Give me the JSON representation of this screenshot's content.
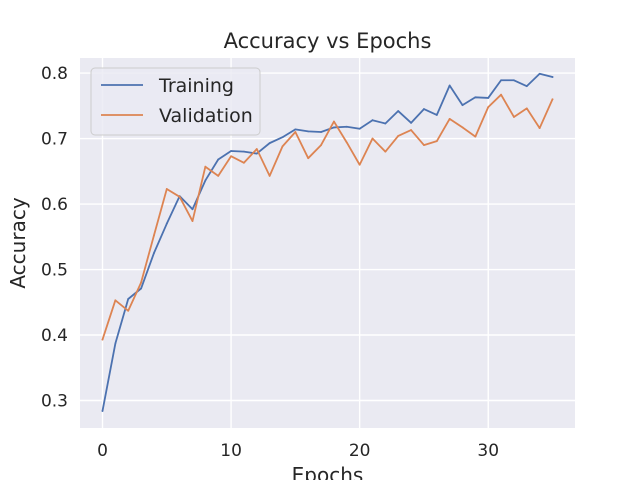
{
  "chart_data": {
    "type": "line",
    "title": "Accuracy vs Epochs",
    "xlabel": "Epochs",
    "ylabel": "Accuracy",
    "x": [
      0,
      1,
      2,
      3,
      4,
      5,
      6,
      7,
      8,
      9,
      10,
      11,
      12,
      13,
      14,
      15,
      16,
      17,
      18,
      19,
      20,
      21,
      22,
      23,
      24,
      25,
      26,
      27,
      28,
      29,
      30,
      31,
      32,
      33,
      34,
      35
    ],
    "x_ticks": [
      0,
      10,
      20,
      30
    ],
    "x_tick_labels": [
      "0",
      "10",
      "20",
      "30"
    ],
    "y_ticks": [
      0.3,
      0.4,
      0.5,
      0.6,
      0.7,
      0.8
    ],
    "y_tick_labels": [
      "0.3",
      "0.4",
      "0.5",
      "0.6",
      "0.7",
      "0.8"
    ],
    "xlim": [
      -1.75,
      36.75
    ],
    "ylim": [
      0.258,
      0.823
    ],
    "grid": true,
    "legend_position": "top-left",
    "colors": {
      "plot_background": "#eaeaf2",
      "grid": "#ffffff",
      "text": "#262626",
      "legend_border": "#cccccc"
    },
    "series": [
      {
        "name": "Training",
        "color": "#4c72b0",
        "values": [
          0.284,
          0.387,
          0.455,
          0.471,
          0.525,
          0.57,
          0.612,
          0.592,
          0.636,
          0.668,
          0.681,
          0.68,
          0.677,
          0.693,
          0.702,
          0.714,
          0.711,
          0.71,
          0.717,
          0.718,
          0.715,
          0.728,
          0.723,
          0.742,
          0.724,
          0.745,
          0.736,
          0.781,
          0.751,
          0.763,
          0.762,
          0.789,
          0.789,
          0.78,
          0.799,
          0.794
        ]
      },
      {
        "name": "Validation",
        "color": "#dd8452",
        "values": [
          0.393,
          0.453,
          0.437,
          0.48,
          0.552,
          0.623,
          0.611,
          0.574,
          0.657,
          0.643,
          0.673,
          0.663,
          0.684,
          0.643,
          0.688,
          0.71,
          0.67,
          0.69,
          0.726,
          0.694,
          0.66,
          0.7,
          0.68,
          0.704,
          0.713,
          0.69,
          0.696,
          0.73,
          0.717,
          0.703,
          0.748,
          0.767,
          0.733,
          0.746,
          0.716,
          0.76
        ]
      }
    ]
  }
}
